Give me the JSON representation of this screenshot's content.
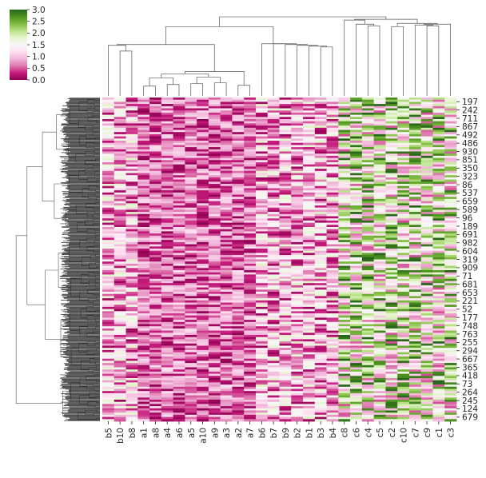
{
  "chart_data": {
    "type": "heatmap",
    "title": "",
    "xlabel": "",
    "ylabel": "",
    "colormap": "PiYG",
    "colormap_colors": [
      "#8e0152",
      "#c51b7d",
      "#de77ae",
      "#f1b6da",
      "#fde0ef",
      "#f7f7f7",
      "#e6f5d0",
      "#b8e186",
      "#7fbc41",
      "#4d9221",
      "#276419"
    ],
    "colorbar": {
      "ticks": [
        "0.0",
        "0.5",
        "1.0",
        "1.5",
        "2.0",
        "2.5",
        "3.0"
      ],
      "range": [
        0.0,
        3.0
      ]
    },
    "columns": [
      "b5",
      "b10",
      "b8",
      "a1",
      "a8",
      "a4",
      "a6",
      "a5",
      "a10",
      "a9",
      "a3",
      "a2",
      "a7",
      "b6",
      "b7",
      "b9",
      "b2",
      "b1",
      "b3",
      "b4",
      "c8",
      "c6",
      "c4",
      "c5",
      "c2",
      "c10",
      "c7",
      "c9",
      "c1",
      "c3"
    ],
    "column_group_mean": {
      "b": 0.95,
      "a": 0.6,
      "c": 1.75
    },
    "row_labels": [
      "197",
      "242",
      "711",
      "867",
      "492",
      "486",
      "930",
      "851",
      "350",
      "323",
      "86",
      "537",
      "659",
      "589",
      "96",
      "189",
      "691",
      "982",
      "604",
      "319",
      "909",
      "71",
      "681",
      "653",
      "221",
      "52",
      "177",
      "748",
      "763",
      "255",
      "294",
      "667",
      "365",
      "418",
      "73",
      "264",
      "245",
      "124",
      "679"
    ],
    "row_dendrogram": "dense hierarchical clustering of rows (left side)",
    "column_dendrogram": "hierarchical clustering of columns (top)"
  }
}
